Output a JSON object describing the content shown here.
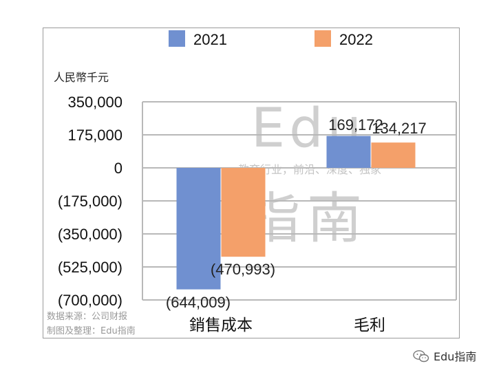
{
  "chart_data": {
    "type": "bar",
    "unit_label": "人民幣千元",
    "categories": [
      "銷售成本",
      "毛利"
    ],
    "series": [
      {
        "name": "2021",
        "values": [
          -644009,
          169172
        ],
        "labels": [
          "(644,009)",
          "169,172"
        ],
        "color": "#7090d0"
      },
      {
        "name": "2022",
        "values": [
          -470993,
          134217
        ],
        "labels": [
          "(470,993)",
          "134,217"
        ],
        "color": "#f4a06a"
      }
    ],
    "y_ticks": [
      350000,
      175000,
      0,
      -175000,
      -350000,
      -525000,
      -700000
    ],
    "y_tick_labels": [
      "350,000",
      "175,000",
      "0",
      "(175,000)",
      "(350,000)",
      "(525,000)",
      "(700,000)"
    ],
    "ylim": [
      -700000,
      350000
    ],
    "grid": true,
    "legend_position": "top"
  },
  "source_note": "数据来源：公司财报",
  "made_by_note": "制图及整理：Edu指南",
  "watermark": {
    "logo_line1": "Edu",
    "logo_line2": "指南",
    "tagline": "教育行业，前沿、深度、独家"
  },
  "brand": {
    "name": "Edu指南",
    "icon": "wechat-icon"
  }
}
